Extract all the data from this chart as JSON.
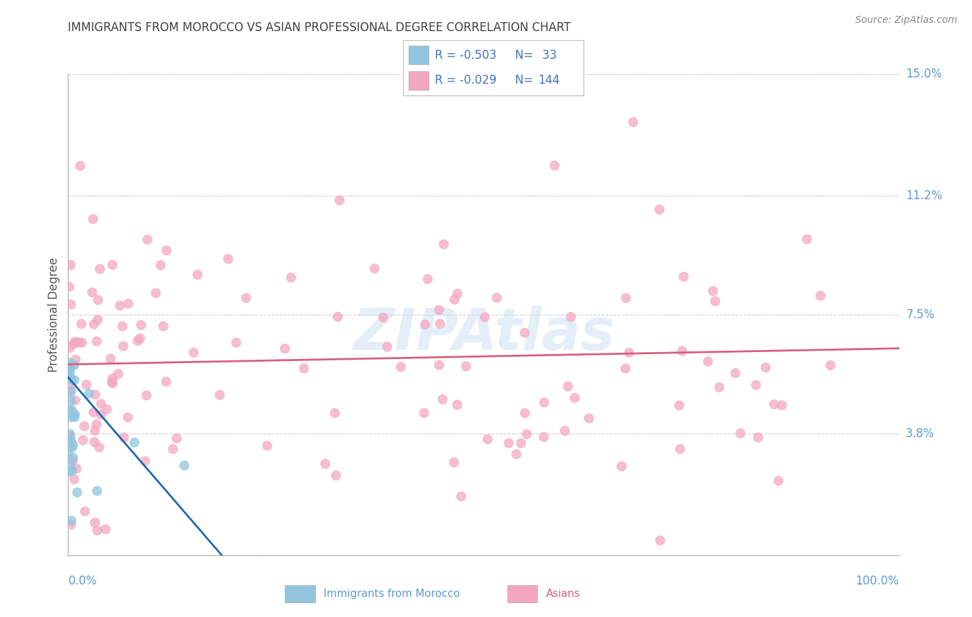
{
  "title": "IMMIGRANTS FROM MOROCCO VS ASIAN PROFESSIONAL DEGREE CORRELATION CHART",
  "source": "Source: ZipAtlas.com",
  "ylabel": "Professional Degree",
  "yticks": [
    0.0,
    3.8,
    7.5,
    11.2,
    15.0
  ],
  "ytick_labels": [
    "",
    "3.8%",
    "7.5%",
    "11.2%",
    "15.0%"
  ],
  "xlim": [
    0.0,
    100.0
  ],
  "ylim": [
    0.0,
    15.0
  ],
  "series1_label": "Immigrants from Morocco",
  "series2_label": "Asians",
  "series1_color": "#92c5de",
  "series2_color": "#f4a6c0",
  "series1_line_color": "#2166ac",
  "series2_line_color": "#d6607a",
  "text_blue": "#4472c4",
  "series1_R": -0.503,
  "series1_N": 33,
  "series2_R": -0.029,
  "series2_N": 144,
  "background_color": "#ffffff",
  "grid_color": "#cccccc",
  "axis_label_color": "#5b9bd5",
  "title_color": "#404040",
  "watermark": "ZIPAtlas",
  "trend1_x0": 0.0,
  "trend1_y0": 5.55,
  "trend1_x1": 18.5,
  "trend1_y1": 0.0,
  "trend2_x0": 0.0,
  "trend2_y0": 5.95,
  "trend2_x1": 100.0,
  "trend2_y1": 6.45
}
